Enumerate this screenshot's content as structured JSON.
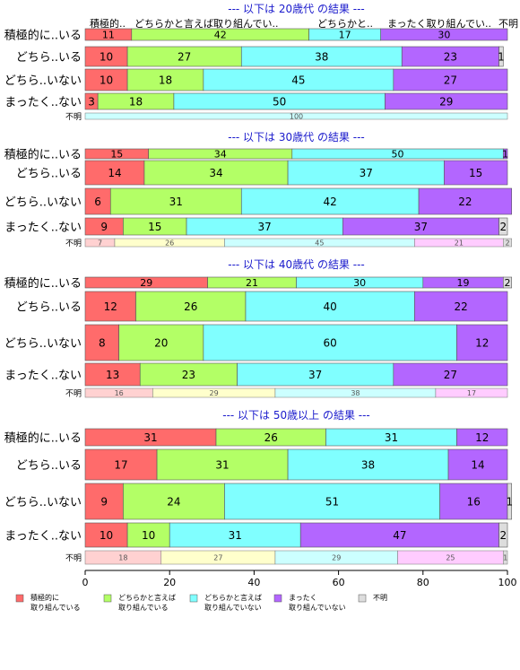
{
  "chart_data": {
    "type": "bar",
    "orientation": "horizontal-stacked-percent",
    "xlim": [
      0,
      100
    ],
    "x_ticks": [
      "0",
      "20",
      "40",
      "60",
      "80",
      "100"
    ],
    "colors": {
      "series": [
        "#ff6b6b",
        "#b3ff66",
        "#80ffff",
        "#b366ff",
        "#dddddd"
      ],
      "unknown_fill": [
        "#ffd1d1",
        "#ffffcc",
        "#ccffff",
        "#ffccff",
        "#dddddd"
      ],
      "title": "#1a1acc"
    },
    "legend": {
      "placement": "bottom-left",
      "entries": [
        {
          "line1": "積極的に",
          "line2": "取り組んでいる"
        },
        {
          "line1": "どちらかと言えば",
          "line2": "取り組んでいる"
        },
        {
          "line1": "どちらかと言えば",
          "line2": "取り組んでいない"
        },
        {
          "line1": "まったく",
          "line2": "取り組んでいない"
        },
        {
          "line1": "不明",
          "line2": ""
        }
      ]
    },
    "header_labels": [
      "積極的..",
      "どちらかと言えば取り組んでい..",
      "どちらかと..",
      "まったく取り組んでい..",
      "不明"
    ],
    "panels": [
      {
        "title": "--- 以下は 20歳代 の結果 ---",
        "rows": [
          {
            "label": "積極的に..いる",
            "values": [
              11,
              42,
              17,
              30,
              0
            ]
          },
          {
            "label": "どちら..いる",
            "values": [
              10,
              27,
              38,
              23,
              1
            ]
          },
          {
            "label": "どちら..いない",
            "values": [
              10,
              18,
              45,
              27,
              0
            ]
          },
          {
            "label": "まったく..ない",
            "values": [
              3,
              18,
              50,
              29,
              0
            ]
          }
        ],
        "unknown": {
          "label": "不明",
          "values": [
            0,
            0,
            100,
            0,
            0
          ]
        }
      },
      {
        "title": "--- 以下は 30歳代 の結果 ---",
        "rows": [
          {
            "label": "積極的に..いる",
            "values": [
              15,
              34,
              50,
              1,
              0
            ]
          },
          {
            "label": "どちら..いる",
            "values": [
              14,
              34,
              37,
              15,
              0
            ]
          },
          {
            "label": "どちら..いない",
            "values": [
              6,
              31,
              42,
              22,
              0
            ]
          },
          {
            "label": "まったく..ない",
            "values": [
              9,
              15,
              37,
              37,
              2
            ]
          }
        ],
        "unknown": {
          "label": "不明",
          "values": [
            7,
            26,
            45,
            21,
            2
          ]
        }
      },
      {
        "title": "--- 以下は 40歳代 の結果 ---",
        "rows": [
          {
            "label": "積極的に..いる",
            "values": [
              29,
              21,
              30,
              19,
              2
            ]
          },
          {
            "label": "どちら..いる",
            "values": [
              12,
              26,
              40,
              22,
              0
            ]
          },
          {
            "label": "どちら..いない",
            "values": [
              8,
              20,
              60,
              12,
              0
            ]
          },
          {
            "label": "まったく..ない",
            "values": [
              13,
              23,
              37,
              27,
              0
            ]
          }
        ],
        "unknown": {
          "label": "不明",
          "values": [
            16,
            29,
            38,
            17,
            0
          ]
        }
      },
      {
        "title": "--- 以下は 50歳以上 の結果 ---",
        "rows": [
          {
            "label": "積極的に..いる",
            "values": [
              31,
              26,
              31,
              12,
              0
            ]
          },
          {
            "label": "どちら..いる",
            "values": [
              17,
              31,
              38,
              14,
              0
            ]
          },
          {
            "label": "どちら..いない",
            "values": [
              9,
              24,
              51,
              16,
              1
            ]
          },
          {
            "label": "まったく..ない",
            "values": [
              10,
              10,
              31,
              47,
              2
            ]
          }
        ],
        "unknown": {
          "label": "不明",
          "values": [
            18,
            27,
            29,
            25,
            1
          ]
        }
      }
    ]
  }
}
